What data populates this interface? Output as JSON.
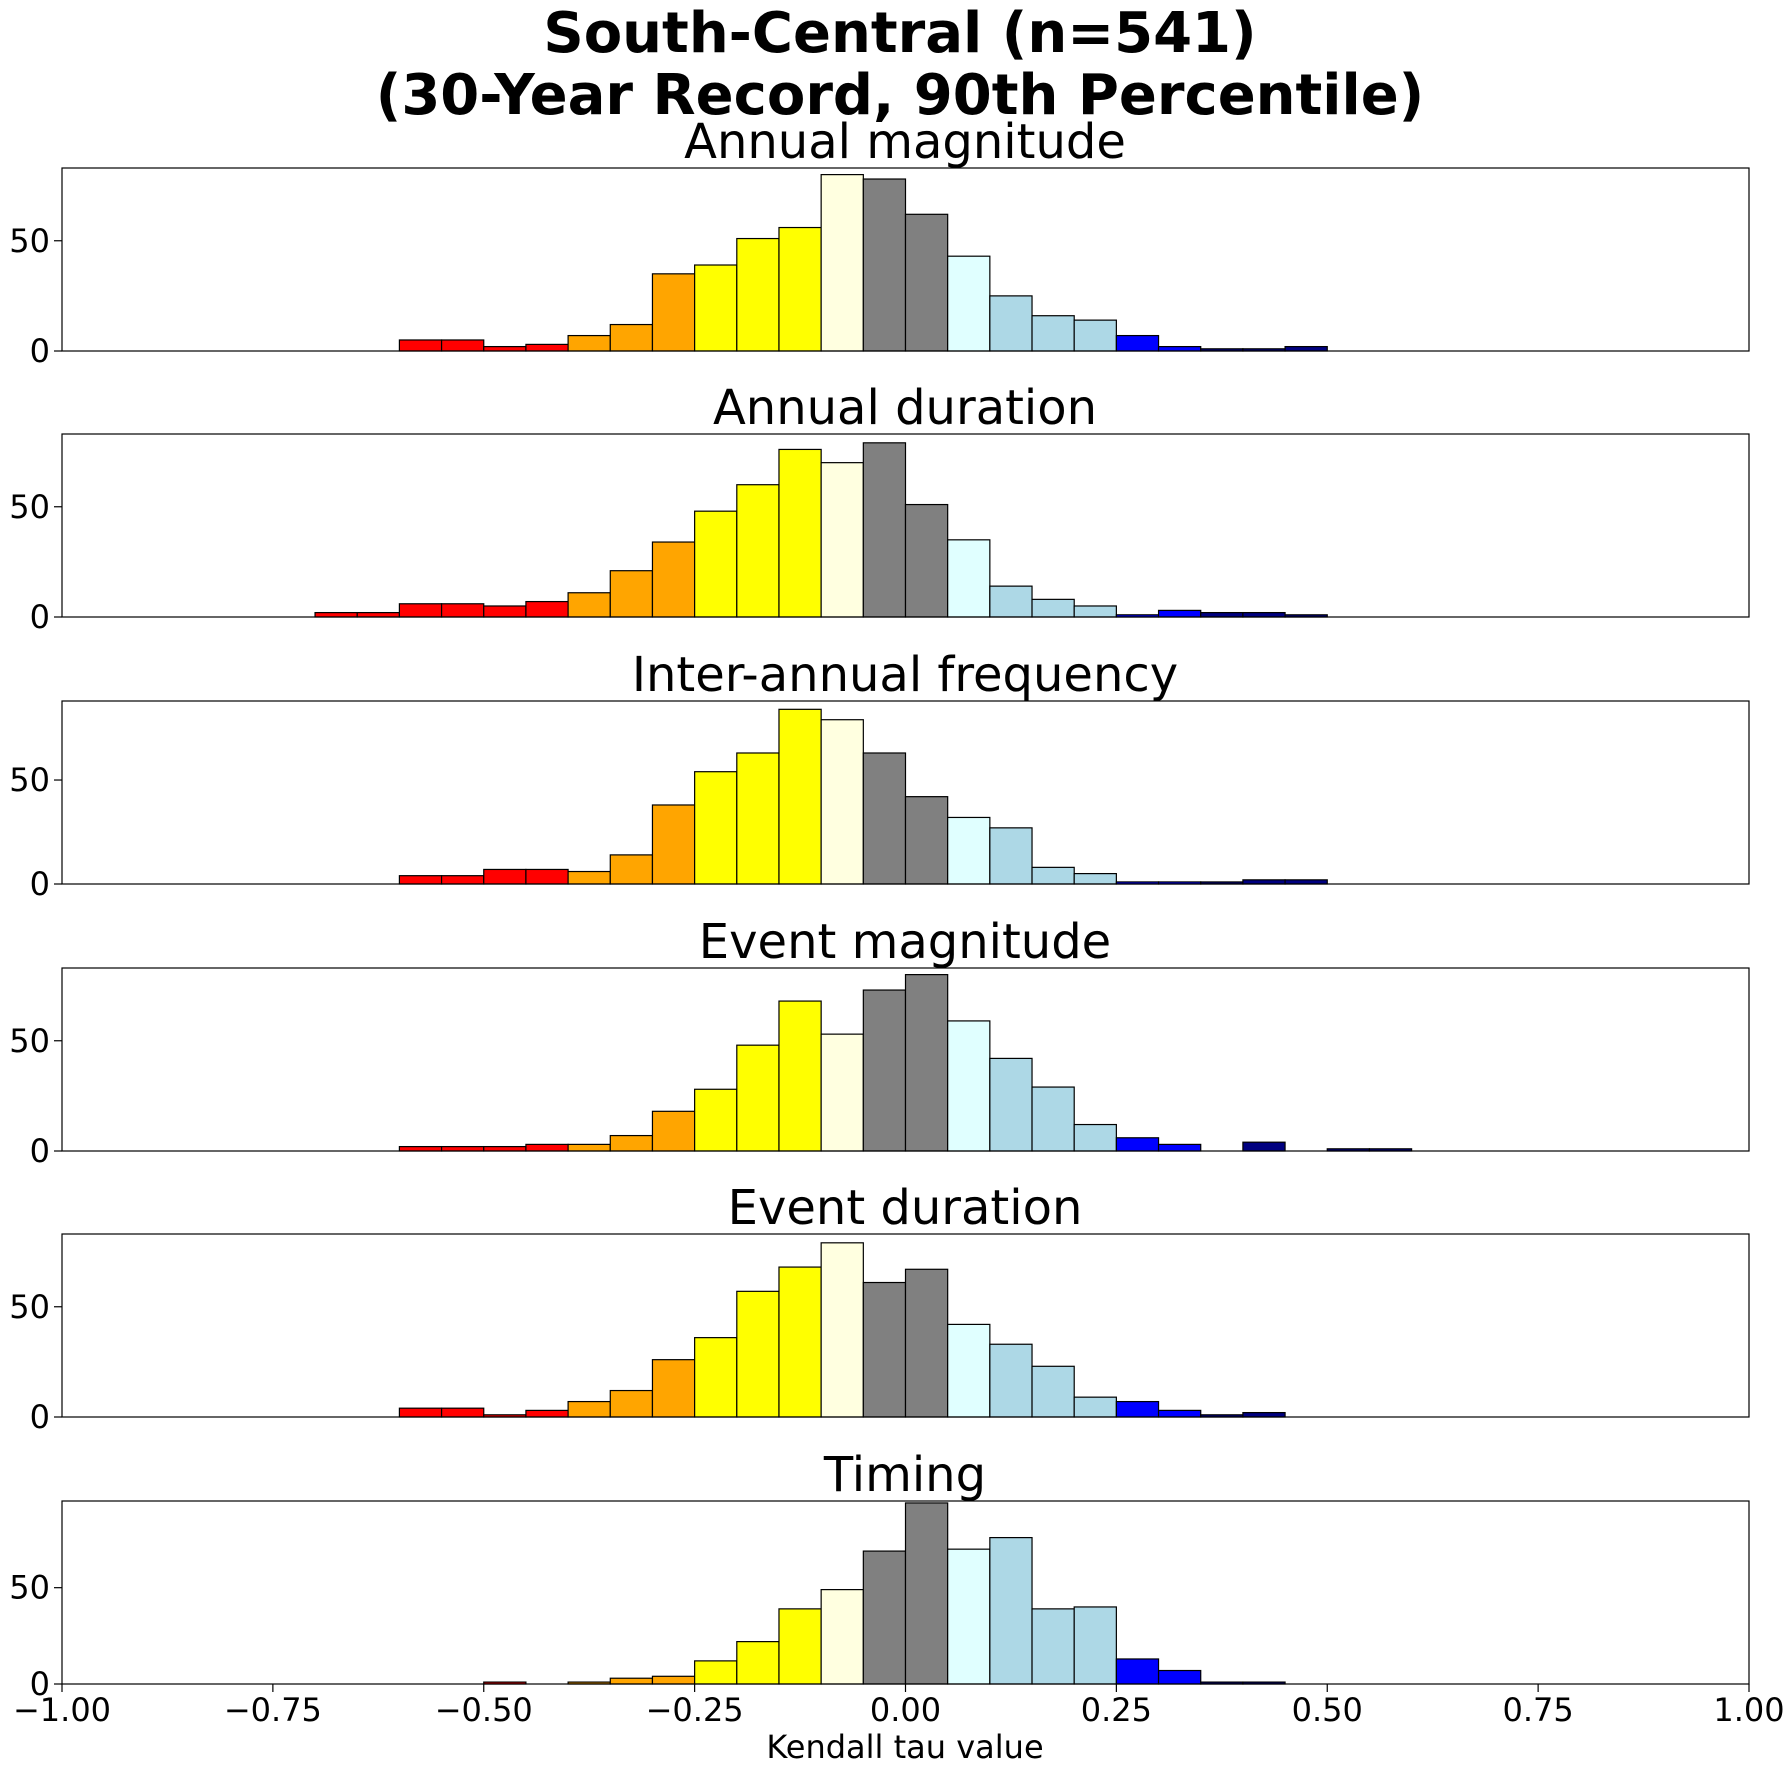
{
  "figure": {
    "title_line1": "South-Central (n=541)",
    "title_line2": "(30-Year Record, 90th Percentile)",
    "xlabel": "Kendall tau value"
  },
  "colors": {
    "dark_red": "#ff0000",
    "orange": "#ffa500",
    "yellow": "#ffff00",
    "light_yellow": "#ffffe0",
    "gray": "#808080",
    "light_cyan": "#e0ffff",
    "light_blue": "#add8e6",
    "blue": "#0000ff",
    "navy": "#000080"
  },
  "chart_data": [
    {
      "type": "bar",
      "title": "Annual magnitude",
      "xlim": [
        -1.0,
        1.0
      ],
      "ylim": [
        0,
        83
      ],
      "yticks": [
        0,
        50
      ],
      "bin_edges_start": -0.7,
      "bin_width": 0.05,
      "values": [
        0,
        0,
        5,
        5,
        2,
        3,
        7,
        12,
        35,
        39,
        51,
        56,
        80,
        78,
        62,
        43,
        25,
        16,
        14,
        7,
        2,
        1,
        1,
        2
      ]
    },
    {
      "type": "bar",
      "title": "Annual duration",
      "xlim": [
        -1.0,
        1.0
      ],
      "ylim": [
        0,
        83
      ],
      "yticks": [
        0,
        50
      ],
      "bin_edges_start": -0.7,
      "bin_width": 0.05,
      "values": [
        2,
        2,
        6,
        6,
        5,
        7,
        11,
        21,
        34,
        48,
        60,
        76,
        70,
        79,
        51,
        35,
        14,
        8,
        5,
        1,
        3,
        2,
        2,
        1
      ]
    },
    {
      "type": "bar",
      "title": "Inter-annual frequency",
      "xlim": [
        -1.0,
        1.0
      ],
      "ylim": [
        0,
        88
      ],
      "yticks": [
        0,
        50
      ],
      "bin_edges_start": -0.7,
      "bin_width": 0.05,
      "values": [
        0,
        0,
        4,
        4,
        7,
        7,
        6,
        14,
        38,
        54,
        63,
        84,
        79,
        63,
        42,
        32,
        27,
        8,
        5,
        1,
        1,
        1,
        2,
        2
      ]
    },
    {
      "type": "bar",
      "title": "Event magnitude",
      "xlim": [
        -1.0,
        1.0
      ],
      "ylim": [
        0,
        83
      ],
      "yticks": [
        0,
        50
      ],
      "bin_edges_start": -0.7,
      "bin_width": 0.05,
      "values": [
        0,
        0,
        2,
        2,
        2,
        3,
        3,
        7,
        18,
        28,
        48,
        68,
        53,
        73,
        80,
        59,
        42,
        29,
        12,
        6,
        3,
        0,
        4,
        0,
        1,
        1
      ]
    },
    {
      "type": "bar",
      "title": "Event duration",
      "xlim": [
        -1.0,
        1.0
      ],
      "ylim": [
        0,
        83
      ],
      "yticks": [
        0,
        50
      ],
      "bin_edges_start": -0.7,
      "bin_width": 0.05,
      "values": [
        0,
        0,
        4,
        4,
        1,
        3,
        7,
        12,
        26,
        36,
        57,
        68,
        79,
        61,
        67,
        42,
        33,
        23,
        9,
        7,
        3,
        1,
        2
      ]
    },
    {
      "type": "bar",
      "title": "Timing",
      "xlim": [
        -1.0,
        1.0
      ],
      "ylim": [
        0,
        95
      ],
      "yticks": [
        0,
        50
      ],
      "xticks": [
        "−1.00",
        "−0.75",
        "−0.50",
        "−0.25",
        "0.00",
        "0.25",
        "0.50",
        "0.75",
        "1.00"
      ],
      "xlabel": "Kendall tau value",
      "bin_edges_start": -0.7,
      "bin_width": 0.05,
      "values": [
        0,
        0,
        0,
        0,
        1,
        0,
        1,
        3,
        4,
        12,
        22,
        39,
        49,
        69,
        94,
        70,
        76,
        39,
        40,
        13,
        7,
        1,
        1
      ]
    }
  ]
}
